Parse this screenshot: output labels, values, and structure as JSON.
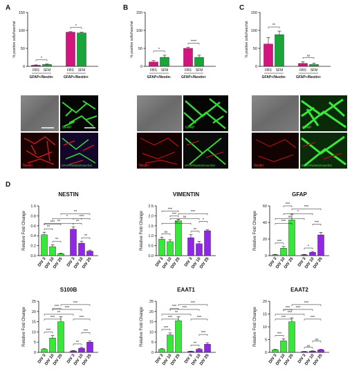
{
  "colors": {
    "fbs": "#d4157f",
    "sfm": "#18a63a",
    "div_green": "#39e63a",
    "div_purple": "#9226e6",
    "ink": "#111111"
  },
  "panel_labels": {
    "A": "A",
    "B": "B",
    "C": "C",
    "D": "D"
  },
  "micro_labels": {
    "gfap": "GFAP",
    "nestin": "Nestin",
    "gfap_nestin_hoechst": "GFAP/Nestin/Hoechst"
  },
  "chart_data": [
    {
      "id": "A",
      "type": "bar",
      "ylabel": "% positive cells/hoechst",
      "ylim": [
        0,
        150
      ],
      "yticks": [
        0,
        50,
        100,
        150
      ],
      "groups": [
        "GFAP+/Nestin-",
        "GFAP+/Nestin+"
      ],
      "categories": [
        "FBS",
        "SFM",
        "FBS",
        "SFM"
      ],
      "values": [
        3,
        5,
        95,
        93
      ],
      "errors": [
        1,
        1.5,
        1.5,
        2
      ],
      "bar_colors": [
        "fbs",
        "sfm",
        "fbs",
        "sfm"
      ],
      "significance": [
        {
          "a": 0,
          "b": 1,
          "label": "*"
        },
        {
          "a": 2,
          "b": 3,
          "label": "*"
        }
      ]
    },
    {
      "id": "B",
      "type": "bar",
      "ylabel": "% positive cells/hoechst",
      "ylim": [
        0,
        150
      ],
      "yticks": [
        0,
        50,
        100,
        150
      ],
      "groups": [
        "GFAP+/Nestin-",
        "GFAP+/Nestin+"
      ],
      "categories": [
        "FBS",
        "SFM",
        "FBS",
        "SFM"
      ],
      "values": [
        12,
        25,
        50,
        25
      ],
      "errors": [
        4,
        6,
        3,
        6
      ],
      "bar_colors": [
        "fbs",
        "sfm",
        "fbs",
        "sfm"
      ],
      "significance": [
        {
          "a": 0,
          "b": 1,
          "label": "*"
        },
        {
          "a": 2,
          "b": 3,
          "label": "****"
        }
      ]
    },
    {
      "id": "C",
      "type": "bar",
      "ylabel": "% positive cells/hoechst",
      "ylim": [
        0,
        150
      ],
      "yticks": [
        0,
        50,
        100,
        150
      ],
      "groups": [
        "GFAP+/Nestin-",
        "GFAP+/Nestin+"
      ],
      "categories": [
        "FBS",
        "SFM",
        "FBS",
        "SFM"
      ],
      "values": [
        62,
        88,
        8,
        5
      ],
      "errors": [
        18,
        10,
        5,
        4
      ],
      "bar_colors": [
        "fbs",
        "sfm",
        "fbs",
        "sfm"
      ],
      "significance": [
        {
          "a": 0,
          "b": 1,
          "label": "**"
        },
        {
          "a": 2,
          "b": 3,
          "label": "ns"
        }
      ]
    },
    {
      "id": "NESTIN",
      "type": "bar",
      "title": "NESTIN",
      "ylabel": "Relative Fold Change",
      "ylim": [
        0,
        1.0
      ],
      "yticks": [
        "0.0",
        "0.2",
        "0.4",
        "0.6",
        "0.8",
        "1.0"
      ],
      "categories": [
        "DIV 3",
        "DIV 10",
        "DIV 25",
        "DIV 3",
        "DIV 10",
        "DIV 25"
      ],
      "values": [
        0.42,
        0.18,
        0.04,
        0.53,
        0.25,
        0.09
      ],
      "errors": [
        0.05,
        0.04,
        0.01,
        0.05,
        0.04,
        0.02
      ],
      "bar_colors": [
        "div_green",
        "div_green",
        "div_green",
        "div_purple",
        "div_purple",
        "div_purple"
      ],
      "significance": [
        {
          "a": 0,
          "b": 1,
          "label": "**",
          "l": 0
        },
        {
          "a": 1,
          "b": 2,
          "label": "**",
          "l": 0
        },
        {
          "a": 0,
          "b": 2,
          "label": "***",
          "l": 1
        },
        {
          "a": 3,
          "b": 4,
          "label": "**",
          "l": 0
        },
        {
          "a": 4,
          "b": 5,
          "label": "**",
          "l": 0
        },
        {
          "a": 3,
          "b": 5,
          "label": "***",
          "l": 1
        },
        {
          "a": 0,
          "b": 3,
          "label": "**",
          "l": 2
        },
        {
          "a": 1,
          "b": 4,
          "label": "*",
          "l": 3
        },
        {
          "a": 2,
          "b": 5,
          "label": "**",
          "l": 4
        }
      ]
    },
    {
      "id": "VIMENTIN",
      "type": "bar",
      "title": "VIMENTIN",
      "ylabel": "Relative Fold Change",
      "ylim": [
        0,
        2.5
      ],
      "yticks": [
        "0.0",
        "0.5",
        "1.0",
        "1.5",
        "2.0",
        "2.5"
      ],
      "categories": [
        "DIV 3",
        "DIV 10",
        "DIV 25",
        "DIV 3",
        "DIV 10",
        "DIV 25"
      ],
      "values": [
        0.83,
        0.7,
        1.75,
        0.9,
        0.6,
        1.25
      ],
      "errors": [
        0.1,
        0.1,
        0.08,
        0.15,
        0.12,
        0.05
      ],
      "bar_colors": [
        "div_green",
        "div_green",
        "div_green",
        "div_purple",
        "div_purple",
        "div_purple"
      ],
      "significance": [
        {
          "a": 0,
          "b": 1,
          "label": "ns",
          "l": 0
        },
        {
          "a": 1,
          "b": 2,
          "label": "***",
          "l": 0
        },
        {
          "a": 0,
          "b": 2,
          "label": "***",
          "l": 1
        },
        {
          "a": 3,
          "b": 4,
          "label": "**",
          "l": 0
        },
        {
          "a": 4,
          "b": 5,
          "label": "*",
          "l": 1
        },
        {
          "a": 0,
          "b": 3,
          "label": "ns",
          "l": 2
        },
        {
          "a": 1,
          "b": 4,
          "label": "ns",
          "l": 3
        },
        {
          "a": 2,
          "b": 5,
          "label": "***",
          "l": 4
        }
      ]
    },
    {
      "id": "GFAP",
      "type": "bar",
      "title": "GFAP",
      "ylabel": "Relative Fold Change",
      "ylim": [
        0,
        60
      ],
      "yticks": [
        "0",
        "20",
        "40",
        "60"
      ],
      "categories": [
        "DIV 3",
        "DIV 10",
        "DIV 25",
        "DIV 3",
        "DIV 10",
        "DIV 25"
      ],
      "values": [
        1,
        9,
        43,
        1,
        4,
        25
      ],
      "errors": [
        0.5,
        2,
        7,
        0.5,
        1,
        3
      ],
      "bar_colors": [
        "div_green",
        "div_green",
        "div_green",
        "div_purple",
        "div_purple",
        "div_purple"
      ],
      "significance": [
        {
          "a": 0,
          "b": 1,
          "label": "***",
          "l": 0
        },
        {
          "a": 1,
          "b": 2,
          "label": "***",
          "l": 1
        },
        {
          "a": 0,
          "b": 2,
          "label": "***",
          "l": 2
        },
        {
          "a": 3,
          "b": 4,
          "label": "*",
          "l": 0
        },
        {
          "a": 4,
          "b": 5,
          "label": "***",
          "l": 1
        },
        {
          "a": 0,
          "b": 3,
          "label": "ns",
          "l": 3
        },
        {
          "a": 1,
          "b": 4,
          "label": "*",
          "l": 4
        },
        {
          "a": 2,
          "b": 5,
          "label": "***",
          "l": 5
        }
      ]
    },
    {
      "id": "S100B",
      "type": "bar",
      "title": "S100B",
      "ylabel": "Relative Fold Change",
      "ylim": [
        0,
        25
      ],
      "yticks": [
        "0",
        "5",
        "10",
        "15",
        "20",
        "25"
      ],
      "categories": [
        "DIV 3",
        "DIV 10",
        "DIV 25",
        "DIV 3",
        "DIV 10",
        "DIV 25"
      ],
      "values": [
        1.5,
        7,
        15,
        0.7,
        2,
        5
      ],
      "errors": [
        0.3,
        1.2,
        2.5,
        0.2,
        0.4,
        0.6
      ],
      "bar_colors": [
        "div_green",
        "div_green",
        "div_green",
        "div_purple",
        "div_purple",
        "div_purple"
      ],
      "significance": [
        {
          "a": 0,
          "b": 1,
          "label": "***",
          "l": 0
        },
        {
          "a": 1,
          "b": 2,
          "label": "***",
          "l": 1
        },
        {
          "a": 0,
          "b": 2,
          "label": "***",
          "l": 2
        },
        {
          "a": 3,
          "b": 4,
          "label": "**",
          "l": 0
        },
        {
          "a": 4,
          "b": 5,
          "label": "***",
          "l": 1
        },
        {
          "a": 3,
          "b": 5,
          "label": "***",
          "l": 2
        },
        {
          "a": 0,
          "b": 3,
          "label": "**",
          "l": 3
        },
        {
          "a": 1,
          "b": 4,
          "label": "***",
          "l": 4
        },
        {
          "a": 2,
          "b": 5,
          "label": "***",
          "l": 5
        }
      ]
    },
    {
      "id": "EAAT1",
      "type": "bar",
      "title": "EAAT1",
      "ylabel": "Relative Fold Change",
      "ylim": [
        0,
        25
      ],
      "yticks": [
        "0",
        "5",
        "10",
        "15",
        "20",
        "25"
      ],
      "categories": [
        "DIV 3",
        "DIV 10",
        "DIV 25",
        "DIV 3",
        "DIV 10",
        "DIV 25"
      ],
      "values": [
        1.5,
        8.5,
        15.5,
        0.5,
        1.5,
        4
      ],
      "errors": [
        0.3,
        1,
        2,
        0.1,
        0.4,
        0.7
      ],
      "bar_colors": [
        "div_green",
        "div_green",
        "div_green",
        "div_purple",
        "div_purple",
        "div_purple"
      ],
      "significance": [
        {
          "a": 0,
          "b": 1,
          "label": "***",
          "l": 0
        },
        {
          "a": 1,
          "b": 2,
          "label": "***",
          "l": 1
        },
        {
          "a": 0,
          "b": 2,
          "label": "***",
          "l": 2
        },
        {
          "a": 3,
          "b": 4,
          "label": "**",
          "l": 0
        },
        {
          "a": 4,
          "b": 5,
          "label": "***",
          "l": 1
        },
        {
          "a": 3,
          "b": 5,
          "label": "***",
          "l": 2
        },
        {
          "a": 0,
          "b": 3,
          "label": "**",
          "l": 3
        },
        {
          "a": 1,
          "b": 4,
          "label": "***",
          "l": 4
        },
        {
          "a": 2,
          "b": 5,
          "label": "***",
          "l": 5
        }
      ]
    },
    {
      "id": "EAAT2",
      "type": "bar",
      "title": "EAAT2",
      "ylabel": "Relative Fold Change",
      "ylim": [
        0,
        20
      ],
      "yticks": [
        "0",
        "5",
        "10",
        "15",
        "20"
      ],
      "categories": [
        "DIV 3",
        "DIV 10",
        "DIV 25",
        "DIV 3",
        "DIV 10",
        "DIV 25"
      ],
      "values": [
        1,
        4.5,
        12,
        0.3,
        0.5,
        1
      ],
      "errors": [
        0.2,
        0.8,
        1.5,
        0.1,
        0.1,
        0.2
      ],
      "bar_colors": [
        "div_green",
        "div_green",
        "div_green",
        "div_purple",
        "div_purple",
        "div_purple"
      ],
      "significance": [
        {
          "a": 0,
          "b": 1,
          "label": "***",
          "l": 0
        },
        {
          "a": 1,
          "b": 2,
          "label": "***",
          "l": 1
        },
        {
          "a": 0,
          "b": 2,
          "label": "***",
          "l": 2
        },
        {
          "a": 3,
          "b": 4,
          "label": "ns",
          "l": 0
        },
        {
          "a": 4,
          "b": 5,
          "label": "ns",
          "l": 1
        },
        {
          "a": 3,
          "b": 5,
          "label": "***",
          "l": 2
        },
        {
          "a": 0,
          "b": 3,
          "label": "***",
          "l": 3
        },
        {
          "a": 1,
          "b": 4,
          "label": "***",
          "l": 4
        },
        {
          "a": 2,
          "b": 5,
          "label": "***",
          "l": 5
        }
      ]
    }
  ]
}
